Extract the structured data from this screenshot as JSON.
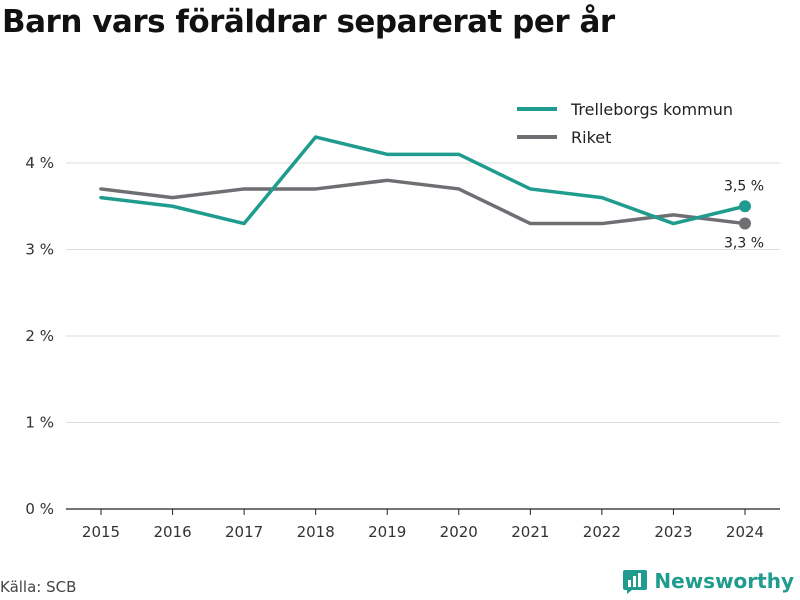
{
  "chart_data": {
    "type": "line",
    "title": "Barn vars föräldrar separerat per år",
    "xlabel": "",
    "ylabel": "",
    "categories": [
      "2015",
      "2016",
      "2017",
      "2018",
      "2019",
      "2020",
      "2021",
      "2022",
      "2023",
      "2024"
    ],
    "ylim": [
      0,
      4.5
    ],
    "yticks": [
      0,
      1,
      2,
      3,
      4
    ],
    "ytick_labels": [
      "0 %",
      "1 %",
      "2 %",
      "3 %",
      "4 %"
    ],
    "grid": true,
    "legend_position": "top-right",
    "series": [
      {
        "name": "Trelleborgs kommun",
        "color": "#1f9c8d",
        "values": [
          3.6,
          3.5,
          3.3,
          4.3,
          4.1,
          4.1,
          3.7,
          3.6,
          3.3,
          3.5
        ],
        "end_label": "3,5 %"
      },
      {
        "name": "Riket",
        "color": "#6e6e73",
        "values": [
          3.7,
          3.6,
          3.7,
          3.7,
          3.8,
          3.7,
          3.3,
          3.3,
          3.4,
          3.3
        ],
        "end_label": "3,3 %"
      }
    ]
  },
  "footer": {
    "source": "Källa: SCB",
    "brand": "Newsworthy",
    "brand_icon": "bar-chart-logo-icon"
  }
}
